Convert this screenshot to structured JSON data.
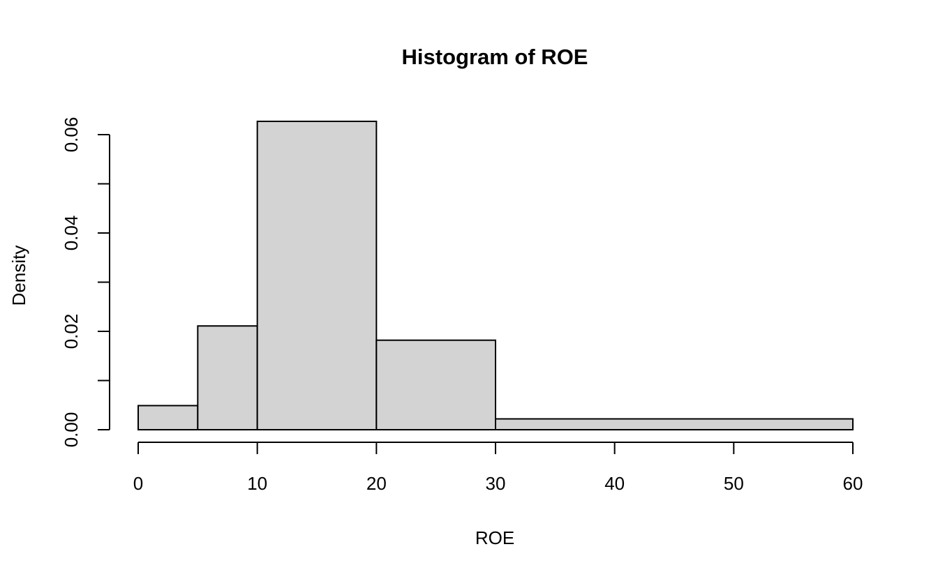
{
  "chart_data": {
    "type": "histogram",
    "title": "Histogram of ROE",
    "xlabel": "ROE",
    "ylabel": "Density",
    "bins": [
      {
        "start": 0,
        "end": 5,
        "density": 0.0049
      },
      {
        "start": 5,
        "end": 10,
        "density": 0.0211
      },
      {
        "start": 10,
        "end": 20,
        "density": 0.0627
      },
      {
        "start": 20,
        "end": 30,
        "density": 0.0182
      },
      {
        "start": 30,
        "end": 60,
        "density": 0.0022
      }
    ],
    "xlim": [
      0,
      60
    ],
    "ylim": [
      0,
      0.06
    ],
    "x_ticks": [
      0,
      10,
      20,
      30,
      40,
      50,
      60
    ],
    "x_tick_labels": [
      "0",
      "10",
      "20",
      "30",
      "40",
      "50",
      "60"
    ],
    "y_ticks": [
      0,
      0.01,
      0.02,
      0.03,
      0.04,
      0.05,
      0.06
    ],
    "y_tick_labels": [
      "0.00",
      "",
      "0.02",
      "",
      "0.04",
      "",
      "0.06"
    ],
    "bar_color": "#d3d3d3",
    "grid": false,
    "legend": "none"
  }
}
